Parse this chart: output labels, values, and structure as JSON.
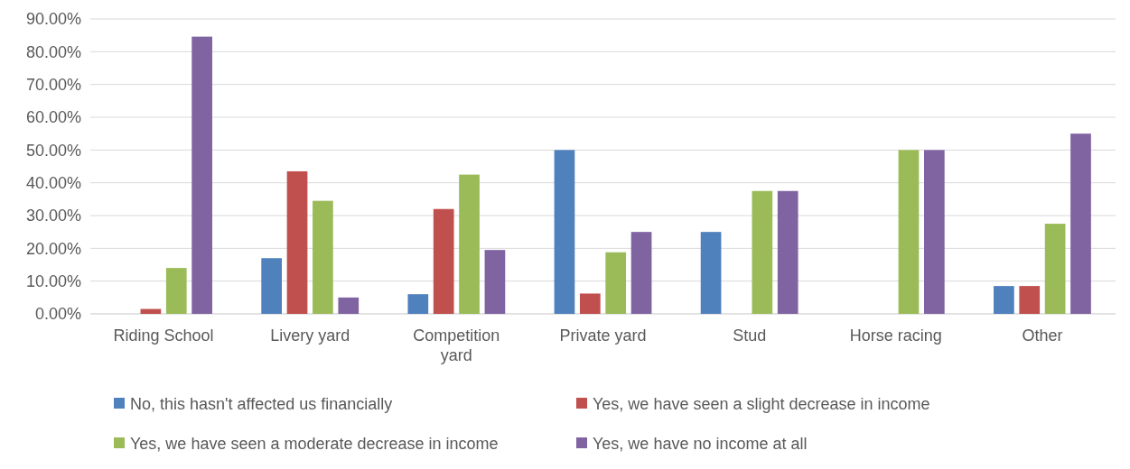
{
  "chart_data": {
    "type": "bar",
    "categories": [
      "Riding School",
      "Livery yard",
      "Competition yard",
      "Private yard",
      "Stud",
      "Horse racing",
      "Other"
    ],
    "series": [
      {
        "name": "No, this hasn't affected us financially",
        "color": "#4f81bd",
        "values": [
          0,
          17,
          6,
          50,
          25,
          0,
          8.5
        ]
      },
      {
        "name": "Yes, we have seen a slight decrease in income",
        "color": "#c0504d",
        "values": [
          1.5,
          43.5,
          32,
          6.2,
          0,
          0,
          8.5
        ]
      },
      {
        "name": "Yes, we have seen a moderate decrease in income",
        "color": "#9bbb59",
        "values": [
          14,
          34.5,
          42.5,
          18.8,
          37.5,
          50,
          27.5
        ]
      },
      {
        "name": "Yes, we have no income at all",
        "color": "#8064a2",
        "values": [
          84.6,
          5,
          19.5,
          25,
          37.5,
          50,
          55
        ]
      }
    ],
    "ylim": [
      0,
      90
    ],
    "yticks": [
      {
        "value": 0,
        "label": "0.00%"
      },
      {
        "value": 10,
        "label": "10.00%"
      },
      {
        "value": 20,
        "label": "20.00%"
      },
      {
        "value": 30,
        "label": "30.00%"
      },
      {
        "value": 40,
        "label": "40.00%"
      },
      {
        "value": 50,
        "label": "50.00%"
      },
      {
        "value": 60,
        "label": "60.00%"
      },
      {
        "value": 70,
        "label": "70.00%"
      },
      {
        "value": 80,
        "label": "80.00%"
      },
      {
        "value": 90,
        "label": "90.00%"
      }
    ],
    "grid": "y",
    "legend": "bottom"
  }
}
